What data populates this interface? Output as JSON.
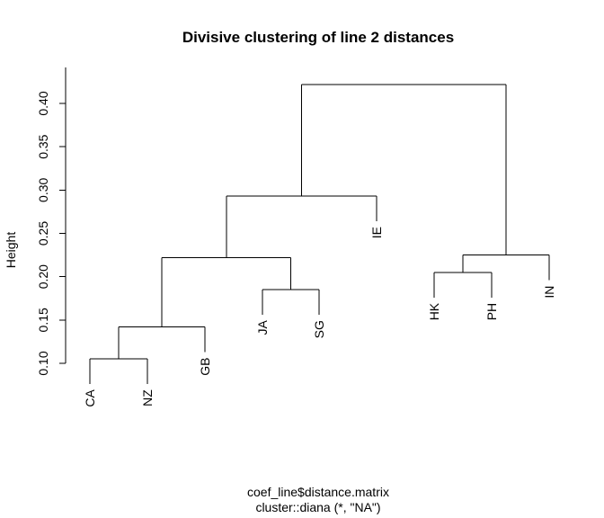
{
  "chart_data": {
    "type": "dendrogram",
    "title": "Divisive clustering of line 2 distances",
    "ylabel": "Height",
    "xlabel": "coef_line$distance.matrix",
    "subtitle": "cluster::diana (*, \"NA\")",
    "ylim": [
      0.1,
      0.42
    ],
    "yticks": [
      "0.10",
      "0.15",
      "0.20",
      "0.25",
      "0.30",
      "0.35",
      "0.40"
    ],
    "leaves": [
      "CA",
      "NZ",
      "GB",
      "JA",
      "SG",
      "IE",
      "HK",
      "PH",
      "IN"
    ],
    "merges": [
      {
        "left": "CA",
        "right": "NZ",
        "height": 0.105
      },
      {
        "left": "CA,NZ",
        "right": "GB",
        "height": 0.142
      },
      {
        "left": "JA",
        "right": "SG",
        "height": 0.185
      },
      {
        "left": "CA,NZ,GB",
        "right": "JA,SG",
        "height": 0.222
      },
      {
        "left": "HK",
        "right": "PH",
        "height": 0.205
      },
      {
        "left": "HK,PH",
        "right": "IN",
        "height": 0.225
      },
      {
        "left": "CA,NZ,GB,JA,SG",
        "right": "IE",
        "height": 0.293
      },
      {
        "left": "CA,NZ,GB,JA,SG,IE",
        "right": "HK,PH,IN",
        "height": 0.422
      }
    ]
  }
}
